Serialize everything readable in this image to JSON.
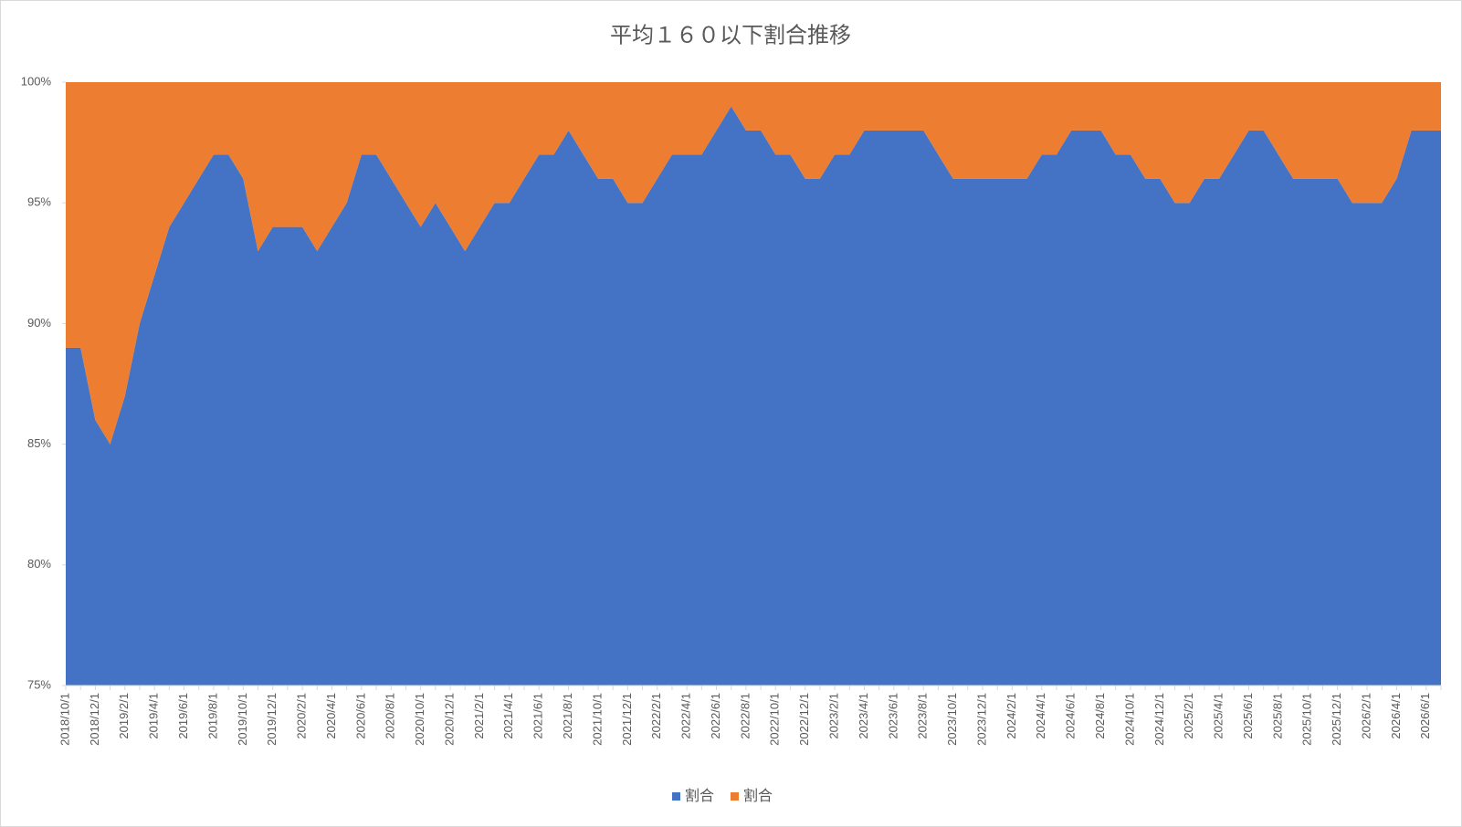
{
  "chart_data": {
    "type": "stacked_area_percent",
    "title": "平均１６０以下割合推移",
    "categories": [
      "2018/10/1",
      null,
      "2018/12/1",
      null,
      "2019/2/1",
      null,
      "2019/4/1",
      null,
      "2019/6/1",
      null,
      "2019/8/1",
      null,
      "2019/10/1",
      null,
      "2019/12/1",
      null,
      "2020/2/1",
      null,
      "2020/4/1",
      null,
      "2020/6/1",
      null,
      "2020/8/1",
      null,
      "2020/10/1",
      null,
      "2020/12/1",
      null,
      "2021/2/1",
      null,
      "2021/4/1",
      null,
      "2021/6/1",
      null,
      "2021/8/1",
      null,
      "2021/10/1",
      null,
      "2021/12/1",
      null,
      "2022/2/1",
      null,
      "2022/4/1",
      null,
      "2022/6/1",
      null,
      "2022/8/1",
      null,
      "2022/10/1",
      null,
      "2022/12/1",
      null,
      "2023/2/1",
      null,
      "2023/4/1",
      null,
      "2023/6/1",
      null,
      "2023/8/1",
      null,
      "2023/10/1",
      null,
      "2023/12/1",
      null,
      "2024/2/1",
      null,
      "2024/4/1",
      null,
      "2024/6/1",
      null,
      "2024/8/1",
      null,
      "2024/10/1",
      null,
      "2024/12/1",
      null,
      "2025/2/1",
      null,
      "2025/4/1",
      null,
      "2025/6/1",
      null,
      "2025/8/1",
      null,
      "2025/10/1",
      null,
      "2025/12/1",
      null,
      "2026/2/1",
      null,
      "2026/4/1",
      null,
      "2026/6/1",
      null
    ],
    "series": [
      {
        "name": "割合",
        "color": "#4472c4",
        "values": [
          89,
          89,
          86,
          85,
          87,
          90,
          92,
          94,
          95,
          96,
          97,
          97,
          96,
          93,
          94,
          94,
          94,
          93,
          94,
          95,
          97,
          97,
          96,
          95,
          94,
          95,
          94,
          93,
          94,
          95,
          95,
          96,
          97,
          97,
          98,
          97,
          96,
          96,
          95,
          95,
          96,
          97,
          97,
          97,
          98,
          99,
          98,
          98,
          97,
          97,
          96,
          96,
          97,
          97,
          98,
          98,
          98,
          98,
          98,
          97,
          96,
          96,
          96,
          96,
          96,
          96,
          97,
          97,
          98,
          98,
          98,
          97,
          97,
          96,
          96,
          95,
          95,
          96,
          96,
          97,
          98,
          98,
          97,
          96,
          96,
          96,
          96,
          95,
          95,
          95,
          96,
          98,
          98,
          98
        ]
      },
      {
        "name": "割合",
        "color": "#ed7d31",
        "values": [
          11,
          11,
          14,
          15,
          13,
          10,
          8,
          6,
          5,
          4,
          3,
          3,
          4,
          7,
          6,
          6,
          6,
          7,
          6,
          5,
          3,
          3,
          4,
          5,
          6,
          5,
          6,
          7,
          6,
          5,
          5,
          4,
          3,
          3,
          2,
          3,
          4,
          4,
          5,
          5,
          4,
          3,
          3,
          3,
          2,
          1,
          2,
          2,
          3,
          3,
          4,
          4,
          3,
          3,
          2,
          2,
          2,
          2,
          2,
          3,
          4,
          4,
          4,
          4,
          4,
          4,
          3,
          3,
          2,
          2,
          2,
          3,
          3,
          4,
          4,
          5,
          5,
          4,
          4,
          3,
          2,
          2,
          3,
          4,
          4,
          4,
          4,
          5,
          5,
          5,
          4,
          2,
          2,
          2
        ]
      }
    ],
    "ylim": [
      75,
      100
    ],
    "yticks": [
      {
        "value": 75,
        "label": "75%"
      },
      {
        "value": 80,
        "label": "80%"
      },
      {
        "value": 85,
        "label": "85%"
      },
      {
        "value": 90,
        "label": "90%"
      },
      {
        "value": 95,
        "label": "95%"
      },
      {
        "value": 100,
        "label": "100%"
      }
    ],
    "legend": "bottom"
  }
}
